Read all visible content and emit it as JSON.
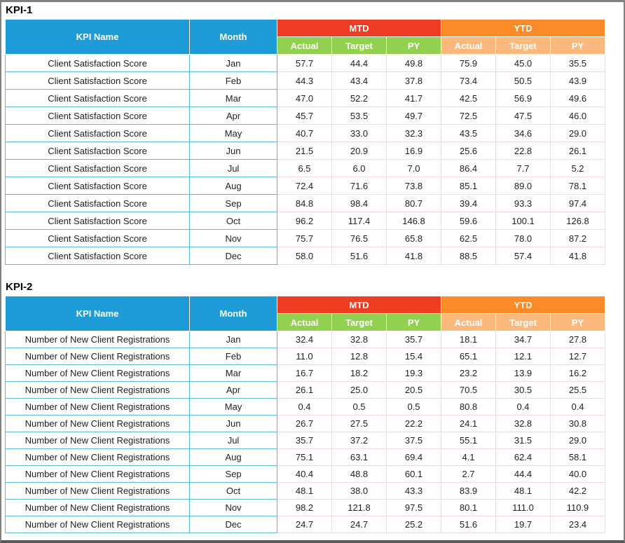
{
  "colors": {
    "header-blue": "#1E9CD7",
    "mtd-red": "#EE3D23",
    "sub-green": "#92D050",
    "ytd-orange": "#FA8B28",
    "sub-light-orange": "#FBB97E",
    "grid-teal": "#58BCD9",
    "grid-pink": "#F2DBDB",
    "frame-gray": "#808080",
    "frame-dark": "#595959",
    "text-dark": "#1F1F1F",
    "header-text": "#FFFFFF"
  },
  "tables": [
    {
      "title": "KPI-1",
      "header": {
        "kpi_name": "KPI Name",
        "month": "Month",
        "mtd": "MTD",
        "ytd": "YTD",
        "sub_mtd": [
          "Actual",
          "Target",
          "PY"
        ],
        "sub_ytd": [
          "Actual",
          "Target",
          "PY"
        ]
      },
      "rows": [
        {
          "kpi": "Client Satisfaction Score",
          "month": "Jan",
          "mtd": [
            "57.7",
            "44.4",
            "49.8"
          ],
          "ytd": [
            "75.9",
            "45.0",
            "35.5"
          ]
        },
        {
          "kpi": "Client Satisfaction Score",
          "month": "Feb",
          "mtd": [
            "44.3",
            "43.4",
            "37.8"
          ],
          "ytd": [
            "73.4",
            "50.5",
            "43.9"
          ]
        },
        {
          "kpi": "Client Satisfaction Score",
          "month": "Mar",
          "mtd": [
            "47.0",
            "52.2",
            "41.7"
          ],
          "ytd": [
            "42.5",
            "56.9",
            "49.6"
          ]
        },
        {
          "kpi": "Client Satisfaction Score",
          "month": "Apr",
          "mtd": [
            "45.7",
            "53.5",
            "49.7"
          ],
          "ytd": [
            "72.5",
            "47.5",
            "46.0"
          ]
        },
        {
          "kpi": "Client Satisfaction Score",
          "month": "May",
          "mtd": [
            "40.7",
            "33.0",
            "32.3"
          ],
          "ytd": [
            "43.5",
            "34.6",
            "29.0"
          ]
        },
        {
          "kpi": "Client Satisfaction Score",
          "month": "Jun",
          "mtd": [
            "21.5",
            "20.9",
            "16.9"
          ],
          "ytd": [
            "25.6",
            "22.8",
            "26.1"
          ]
        },
        {
          "kpi": "Client Satisfaction Score",
          "month": "Jul",
          "mtd": [
            "6.5",
            "6.0",
            "7.0"
          ],
          "ytd": [
            "86.4",
            "7.7",
            "5.2"
          ]
        },
        {
          "kpi": "Client Satisfaction Score",
          "month": "Aug",
          "mtd": [
            "72.4",
            "71.6",
            "73.8"
          ],
          "ytd": [
            "85.1",
            "89.0",
            "78.1"
          ]
        },
        {
          "kpi": "Client Satisfaction Score",
          "month": "Sep",
          "mtd": [
            "84.8",
            "98.4",
            "80.7"
          ],
          "ytd": [
            "39.4",
            "93.3",
            "97.4"
          ]
        },
        {
          "kpi": "Client Satisfaction Score",
          "month": "Oct",
          "mtd": [
            "96.2",
            "117.4",
            "146.8"
          ],
          "ytd": [
            "59.6",
            "100.1",
            "126.8"
          ]
        },
        {
          "kpi": "Client Satisfaction Score",
          "month": "Nov",
          "mtd": [
            "75.7",
            "76.5",
            "65.8"
          ],
          "ytd": [
            "62.5",
            "78.0",
            "87.2"
          ]
        },
        {
          "kpi": "Client Satisfaction Score",
          "month": "Dec",
          "mtd": [
            "58.0",
            "51.6",
            "41.8"
          ],
          "ytd": [
            "88.5",
            "57.4",
            "41.8"
          ]
        }
      ]
    },
    {
      "title": "KPI-2",
      "header": {
        "kpi_name": "KPI Name",
        "month": "Month",
        "mtd": "MTD",
        "ytd": "YTD",
        "sub_mtd": [
          "Actual",
          "Target",
          "PY"
        ],
        "sub_ytd": [
          "Actual",
          "Target",
          "PY"
        ]
      },
      "rows": [
        {
          "kpi": "Number of New Client Registrations",
          "month": "Jan",
          "mtd": [
            "32.4",
            "32.8",
            "35.7"
          ],
          "ytd": [
            "18.1",
            "34.7",
            "27.8"
          ]
        },
        {
          "kpi": "Number of New Client Registrations",
          "month": "Feb",
          "mtd": [
            "11.0",
            "12.8",
            "15.4"
          ],
          "ytd": [
            "65.1",
            "12.1",
            "12.7"
          ]
        },
        {
          "kpi": "Number of New Client Registrations",
          "month": "Mar",
          "mtd": [
            "16.7",
            "18.2",
            "19.3"
          ],
          "ytd": [
            "23.2",
            "13.9",
            "16.2"
          ]
        },
        {
          "kpi": "Number of New Client Registrations",
          "month": "Apr",
          "mtd": [
            "26.1",
            "25.0",
            "20.5"
          ],
          "ytd": [
            "70.5",
            "30.5",
            "25.5"
          ]
        },
        {
          "kpi": "Number of New Client Registrations",
          "month": "May",
          "mtd": [
            "0.4",
            "0.5",
            "0.5"
          ],
          "ytd": [
            "80.8",
            "0.4",
            "0.4"
          ]
        },
        {
          "kpi": "Number of New Client Registrations",
          "month": "Jun",
          "mtd": [
            "26.7",
            "27.5",
            "22.2"
          ],
          "ytd": [
            "24.1",
            "32.8",
            "30.8"
          ]
        },
        {
          "kpi": "Number of New Client Registrations",
          "month": "Jul",
          "mtd": [
            "35.7",
            "37.2",
            "37.5"
          ],
          "ytd": [
            "55.1",
            "31.5",
            "29.0"
          ]
        },
        {
          "kpi": "Number of New Client Registrations",
          "month": "Aug",
          "mtd": [
            "75.1",
            "63.1",
            "69.4"
          ],
          "ytd": [
            "4.1",
            "62.4",
            "58.1"
          ]
        },
        {
          "kpi": "Number of New Client Registrations",
          "month": "Sep",
          "mtd": [
            "40.4",
            "48.8",
            "60.1"
          ],
          "ytd": [
            "2.7",
            "44.4",
            "40.0"
          ]
        },
        {
          "kpi": "Number of New Client Registrations",
          "month": "Oct",
          "mtd": [
            "48.1",
            "38.0",
            "43.3"
          ],
          "ytd": [
            "83.9",
            "48.1",
            "42.2"
          ]
        },
        {
          "kpi": "Number of New Client Registrations",
          "month": "Nov",
          "mtd": [
            "98.2",
            "121.8",
            "97.5"
          ],
          "ytd": [
            "80.1",
            "111.0",
            "110.9"
          ]
        },
        {
          "kpi": "Number of New Client Registrations",
          "month": "Dec",
          "mtd": [
            "24.7",
            "24.7",
            "25.2"
          ],
          "ytd": [
            "51.6",
            "19.7",
            "23.4"
          ]
        }
      ]
    }
  ]
}
